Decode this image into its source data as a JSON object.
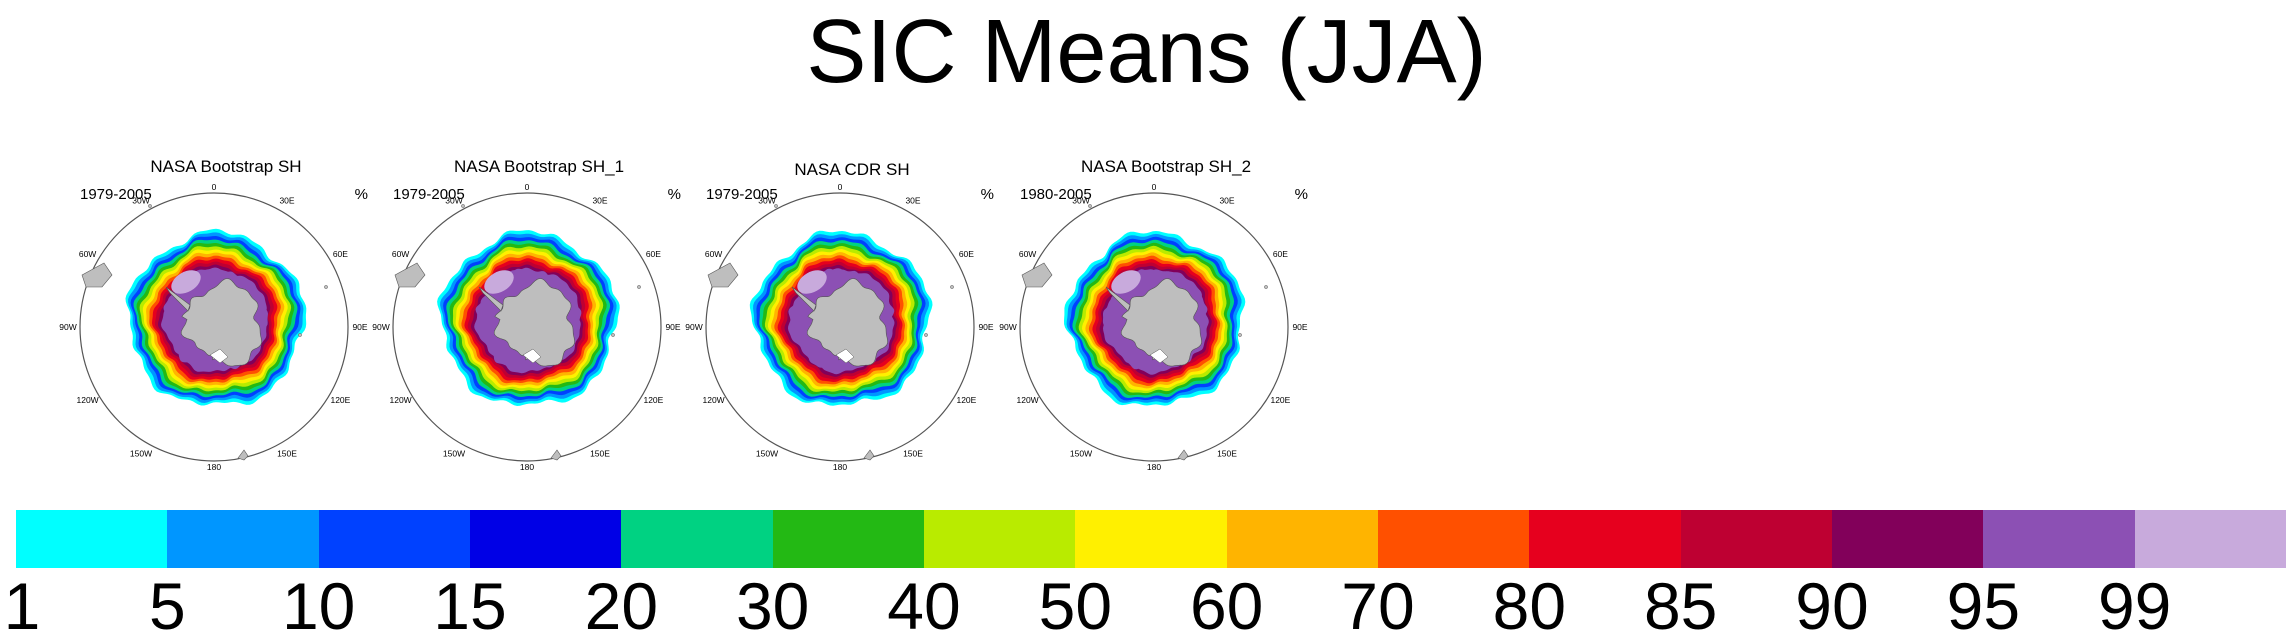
{
  "title": "SIC Means (JJA)",
  "panels": [
    {
      "title": "NASA Bootstrap SH",
      "period": "1979-2005",
      "unit": "%"
    },
    {
      "title": "NASA Bootstrap SH_1",
      "period": "1979-2005",
      "unit": "%"
    },
    {
      "title": "NASA CDR SH",
      "period": "1979-2005",
      "unit": "%"
    },
    {
      "title": "NASA Bootstrap SH_2",
      "period": "1980-2005",
      "unit": "%"
    }
  ],
  "longitude_labels": [
    "0",
    "30E",
    "60E",
    "90E",
    "120E",
    "150E",
    "180",
    "150W",
    "120W",
    "90W",
    "60W",
    "30W"
  ],
  "chart_data": {
    "type": "heatmap",
    "title": "SIC Means (JJA)",
    "variable": "sea ice concentration",
    "unit": "%",
    "colorbar": {
      "levels": [
        "1",
        "5",
        "10",
        "15",
        "20",
        "30",
        "40",
        "50",
        "60",
        "70",
        "80",
        "85",
        "90",
        "95",
        "99"
      ],
      "colors": [
        "#00ffff",
        "#0096ff",
        "#0041ff",
        "#0000e6",
        "#00d282",
        "#23b914",
        "#b9eb00",
        "#fff000",
        "#ffb400",
        "#ff5000",
        "#e6001e",
        "#be0032",
        "#82005a",
        "#8c50b4",
        "#c8aadc"
      ]
    },
    "land_color": "#bebebe"
  }
}
